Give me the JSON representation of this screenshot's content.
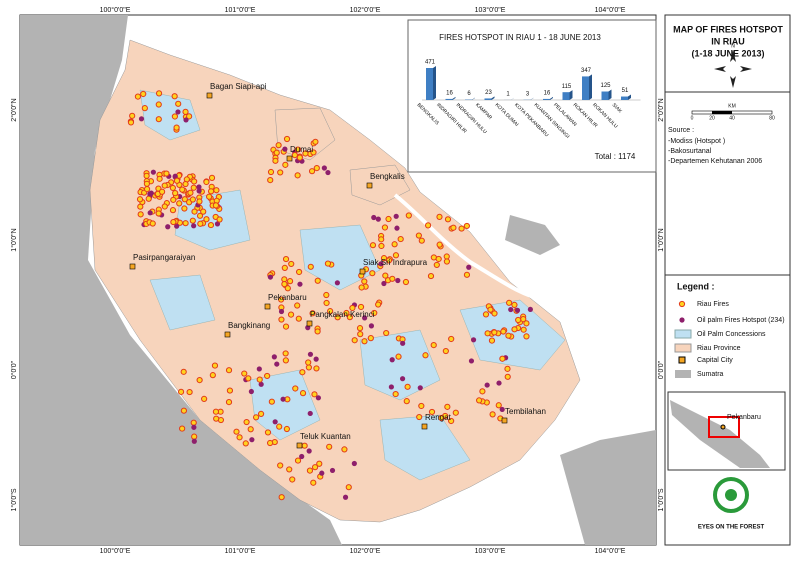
{
  "chart_data": {
    "type": "bar",
    "title": "FIRES HOTSPOT IN RIAU 1 - 18 JUNE 2013",
    "categories": [
      "BENGKALIS",
      "INDRAGIRI HILIR",
      "INDRAGIRI HULU",
      "KAMPAR",
      "KOTA DUMAI",
      "KOTA PEKANBARU",
      "KUANTAN SINGINGI",
      "PELALAWAN",
      "ROKAN HILIR",
      "ROKAN HULU",
      "SIAK"
    ],
    "values": [
      471,
      16,
      6,
      23,
      1,
      3,
      16,
      115,
      347,
      125,
      51
    ],
    "color": "#3f7fc4",
    "total": "Total : 1174"
  },
  "map": {
    "title_lines": [
      "MAP OF FIRES HOTSPOT",
      "IN RIAU",
      "(1-18 JUNE 2013)"
    ],
    "cities": [
      "Bagan Siapi-api",
      "Dumai",
      "Bengkalis",
      "Pasirpangaraiyan",
      "Siak Sri Indrapura",
      "Pekanbaru",
      "Pangkalan Kerinci",
      "Bangkinang",
      "Rengat",
      "Tembilahan",
      "Teluk Kuantan"
    ],
    "top_coords": [
      "100°0'0\"E",
      "101°0'0\"E",
      "102°0'0\"E",
      "103°0'0\"E",
      "104°0'0\"E"
    ],
    "left_coords": [
      "2°0'0\"N",
      "1°0'0\"N",
      "0°0'0\"",
      "1°0'0\"S"
    ],
    "scale": [
      "0",
      "20",
      "40",
      "80",
      "KM"
    ],
    "north": "N",
    "source": [
      "Source :",
      "-Modiss (Hotspot )",
      "-Bakosurtanal",
      "-Departemen Kehutanan 2006"
    ],
    "legend_title": "Legend :",
    "legend": [
      "Riau Fires",
      "Oil palm Fires Hotspot (234)",
      "Oil Palm Concessions",
      "Riau Province",
      "Capital City",
      "Sumatra"
    ],
    "inset_label": "Pekanbaru",
    "logo": "EYES ON THE FOREST"
  }
}
